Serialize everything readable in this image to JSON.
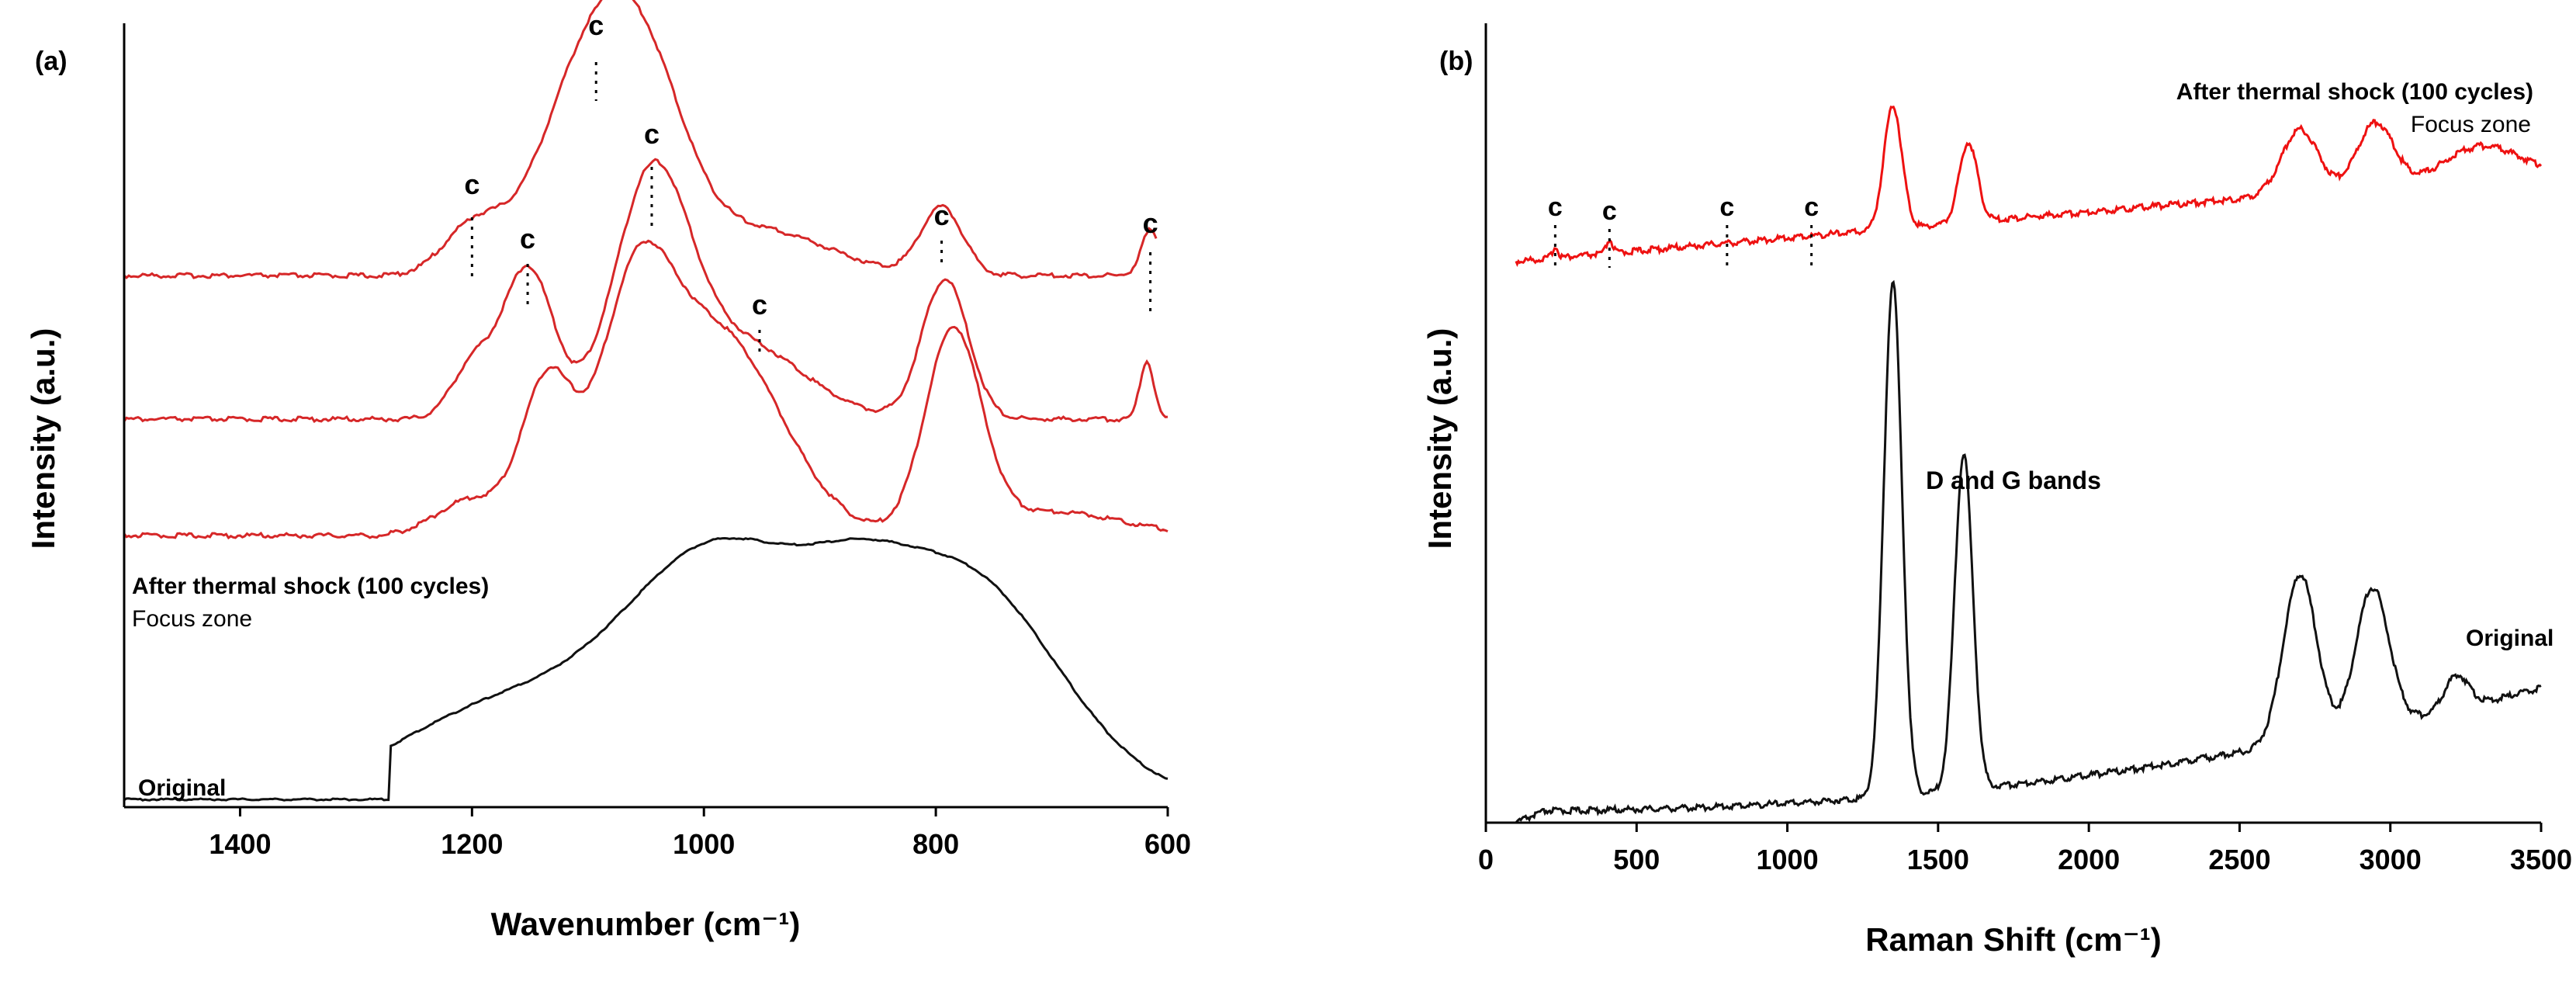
{
  "chart_data": [
    {
      "id": "a",
      "panel_label": "(a)",
      "type": "line",
      "title": "",
      "xlabel": "Wavenumber (cm⁻¹)",
      "ylabel": "Intensity (a.u.)",
      "xlim": [
        1500,
        600
      ],
      "x_reversed": true,
      "xticks": [
        1400,
        1200,
        1000,
        800,
        600
      ],
      "yticks": [],
      "grid": false,
      "series": [
        {
          "name": "After thermal shock (100 cycles) - Focus zone 1",
          "color": "#d62728",
          "offset": 0.66,
          "baseline": 0.0,
          "peaks": [
            [
              1200,
              0.2,
              25
            ],
            [
              1093,
              1.0,
              45
            ],
            [
              1045,
              0.45,
              35
            ],
            [
              952,
              0.2,
              60
            ],
            [
              795,
              0.3,
              18
            ],
            [
              615,
              0.2,
              8
            ]
          ]
        },
        {
          "name": "After thermal shock (100 cycles) - Focus zone 2",
          "color": "#d62728",
          "offset": 0.36,
          "baseline": 0.0,
          "peaks": [
            [
              1200,
              0.22,
              18
            ],
            [
              1152,
              0.65,
              22
            ],
            [
              1045,
              0.97,
              32
            ],
            [
              970,
              0.33,
              55
            ],
            [
              792,
              0.6,
              20
            ],
            [
              618,
              0.25,
              6
            ]
          ]
        },
        {
          "name": "After thermal shock (100 cycles) - Focus zone 3",
          "color": "#d62728",
          "offset": 0.08,
          "baseline": 0.0,
          "peaks": [
            [
              1200,
              0.15,
              30
            ],
            [
              1135,
              0.62,
              22
            ],
            [
              1060,
              0.8,
              30
            ],
            [
              990,
              0.85,
              55
            ],
            [
              785,
              0.83,
              24
            ],
            [
              700,
              0.1,
              60
            ]
          ]
        },
        {
          "name": "Original",
          "color": "#111111",
          "offset": -0.62,
          "baseline": 0.0,
          "peaks": [
            [
              1180,
              0.35,
              90
            ],
            [
              985,
              0.98,
              85
            ],
            [
              870,
              0.22,
              45
            ],
            [
              775,
              0.88,
              80
            ]
          ]
        }
      ],
      "annotations": [
        {
          "text": "c",
          "x": 1093
        },
        {
          "text": "c",
          "x": 1200
        },
        {
          "text": "c",
          "x": 1152
        },
        {
          "text": "c",
          "x": 1045
        },
        {
          "text": "c",
          "x": 952
        },
        {
          "text": "c",
          "x": 795
        },
        {
          "text": "c",
          "x": 615
        }
      ],
      "legend_text": [
        "After thermal shock (100 cycles)",
        "Focus zone"
      ],
      "original_label": "Original"
    },
    {
      "id": "b",
      "panel_label": "(b)",
      "type": "line",
      "title": "",
      "xlabel": "Raman Shift (cm⁻¹)",
      "ylabel": "Intensity (a.u.)",
      "xlim": [
        0,
        3500
      ],
      "x_reversed": false,
      "xticks": [
        0,
        500,
        1000,
        1500,
        2000,
        2500,
        3000,
        3500
      ],
      "yticks": [],
      "grid": false,
      "series": [
        {
          "name": "After thermal shock (100 cycles) - Focus zone",
          "color": "#ee1111",
          "peaks": [
            [
              230,
              0.02,
              10
            ],
            [
              410,
              0.025,
              10
            ],
            [
              1350,
              0.23,
              30
            ],
            [
              1600,
              0.15,
              30
            ],
            [
              2700,
              0.12,
              60
            ],
            [
              2950,
              0.12,
              60
            ],
            [
              3300,
              0.06,
              120
            ]
          ]
        },
        {
          "name": "Original",
          "color": "#111111",
          "peaks": [
            [
              1350,
              0.92,
              30
            ],
            [
              1585,
              0.6,
              30
            ],
            [
              2700,
              0.3,
              55
            ],
            [
              2940,
              0.25,
              55
            ],
            [
              3220,
              0.06,
              40
            ]
          ]
        }
      ],
      "annotations": [
        {
          "text": "c",
          "x": 230
        },
        {
          "text": "c",
          "x": 410
        },
        {
          "text": "c",
          "x": 800
        },
        {
          "text": "c",
          "x": 1080
        },
        {
          "text": "D and G bands",
          "x": 1350
        }
      ],
      "legend_text": [
        "After thermal shock (100 cycles)",
        "Focus zone"
      ],
      "original_label": "Original"
    }
  ]
}
